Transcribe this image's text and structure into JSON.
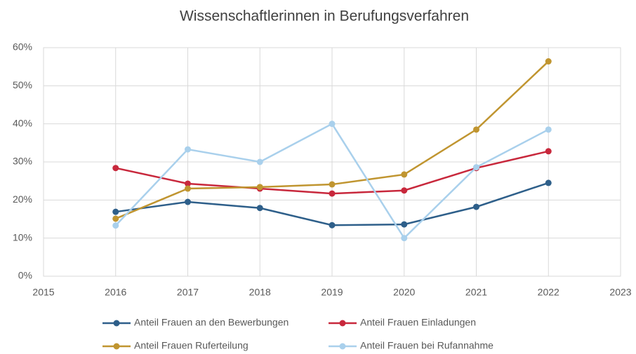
{
  "chart_data": {
    "type": "line",
    "title": "Wissenschaftlerinnen in Berufungsverfahren",
    "x": [
      2016,
      2017,
      2018,
      2019,
      2020,
      2021,
      2022
    ],
    "series": [
      {
        "name": "Anteil Frauen an den Bewerbungen",
        "color": "#2e5f8a",
        "values": [
          16.9,
          19.5,
          17.9,
          13.4,
          13.6,
          18.2,
          24.5
        ]
      },
      {
        "name": "Anteil Frauen Einladungen",
        "color": "#c8283c",
        "values": [
          28.4,
          24.3,
          23.0,
          21.7,
          22.5,
          28.4,
          32.8
        ]
      },
      {
        "name": "Anteil Frauen Ruferteilung",
        "color": "#c09530",
        "values": [
          15.1,
          23.0,
          23.4,
          24.1,
          26.7,
          38.5,
          56.4
        ]
      },
      {
        "name": "Anteil Frauen bei Rufannahme",
        "color": "#a9d0ec",
        "values": [
          13.3,
          33.3,
          30.0,
          40.0,
          10.0,
          28.6,
          38.5
        ]
      }
    ],
    "xlim": [
      2015,
      2023
    ],
    "xticks": [
      2015,
      2016,
      2017,
      2018,
      2019,
      2020,
      2021,
      2022,
      2023
    ],
    "ylim": [
      0,
      60
    ],
    "yticks": [
      {
        "value": 0,
        "label": "0%"
      },
      {
        "value": 10,
        "label": "10%"
      },
      {
        "value": 20,
        "label": "20%"
      },
      {
        "value": 30,
        "label": "30%"
      },
      {
        "value": 40,
        "label": "40%"
      },
      {
        "value": 50,
        "label": "50%"
      },
      {
        "value": 60,
        "label": "60%"
      }
    ],
    "grid": true
  }
}
